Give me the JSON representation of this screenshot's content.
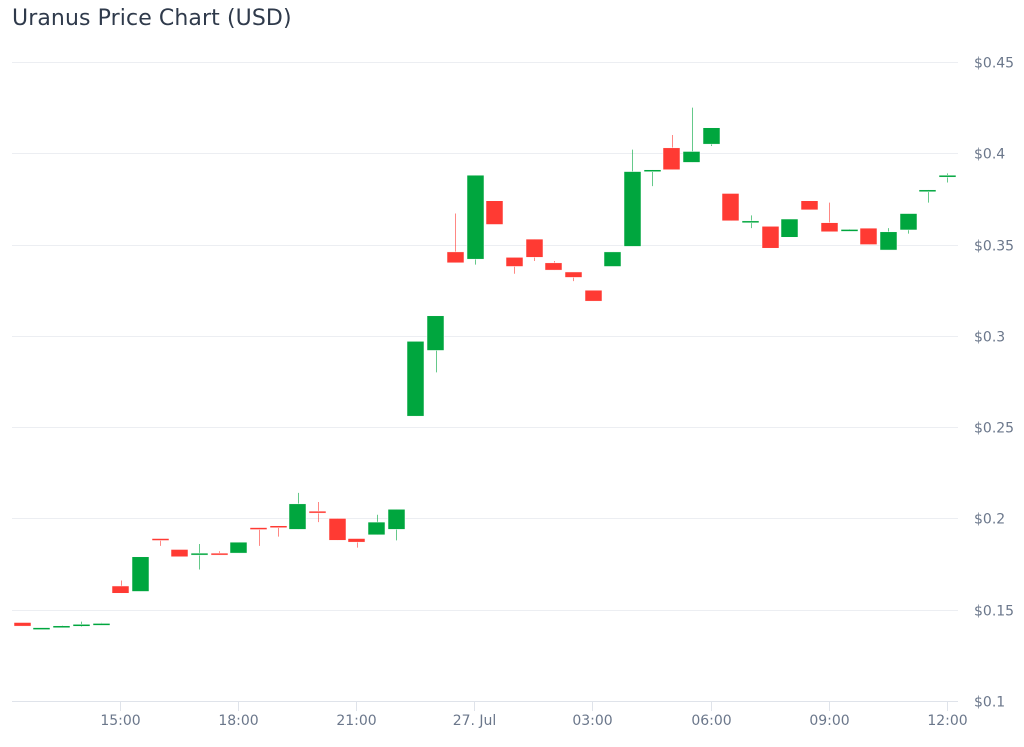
{
  "title": "Uranus Price Chart (USD)",
  "colors": {
    "up": "#00a63e",
    "down": "#ff3a33",
    "grid": "#eceef2",
    "axis_text": "#6b778b",
    "title": "#2f3a4b"
  },
  "chart_data": {
    "type": "candlestick",
    "title": "Uranus Price Chart (USD)",
    "xlabel": "",
    "ylabel": "",
    "ylim": [
      0.1,
      0.45
    ],
    "y_ticks": [
      "$0.1",
      "$0.15",
      "$0.2",
      "$0.25",
      "$0.3",
      "$0.35",
      "$0.4",
      "$0.45"
    ],
    "y_tick_values": [
      0.1,
      0.15,
      0.2,
      0.25,
      0.3,
      0.35,
      0.4,
      0.45
    ],
    "x_ticks": [
      "15:00",
      "18:00",
      "21:00",
      "27. Jul",
      "03:00",
      "06:00",
      "09:00",
      "12:00"
    ],
    "grid": true,
    "legend": "none",
    "interval": "30m",
    "candles": [
      {
        "t": "26 Jul 12:30",
        "o": 0.143,
        "h": 0.143,
        "l": 0.141,
        "c": 0.141
      },
      {
        "t": "26 Jul 13:00",
        "o": 0.14,
        "h": 0.14,
        "l": 0.1395,
        "c": 0.1402
      },
      {
        "t": "26 Jul 13:30",
        "o": 0.141,
        "h": 0.1415,
        "l": 0.1405,
        "c": 0.1412
      },
      {
        "t": "26 Jul 14:00",
        "o": 0.141,
        "h": 0.1435,
        "l": 0.1405,
        "c": 0.142
      },
      {
        "t": "26 Jul 14:30",
        "o": 0.1418,
        "h": 0.1428,
        "l": 0.1418,
        "c": 0.1425
      },
      {
        "t": "26 Jul 15:00",
        "o": 0.163,
        "h": 0.166,
        "l": 0.159,
        "c": 0.159
      },
      {
        "t": "26 Jul 15:30",
        "o": 0.16,
        "h": 0.179,
        "l": 0.16,
        "c": 0.179
      },
      {
        "t": "26 Jul 16:00",
        "o": 0.189,
        "h": 0.189,
        "l": 0.185,
        "c": 0.188
      },
      {
        "t": "26 Jul 16:30",
        "o": 0.183,
        "h": 0.183,
        "l": 0.179,
        "c": 0.179
      },
      {
        "t": "26 Jul 17:00",
        "o": 0.18,
        "h": 0.186,
        "l": 0.172,
        "c": 0.181
      },
      {
        "t": "26 Jul 17:30",
        "o": 0.181,
        "h": 0.182,
        "l": 0.18,
        "c": 0.18
      },
      {
        "t": "26 Jul 18:00",
        "o": 0.181,
        "h": 0.187,
        "l": 0.181,
        "c": 0.187
      },
      {
        "t": "26 Jul 18:30",
        "o": 0.195,
        "h": 0.195,
        "l": 0.185,
        "c": 0.194
      },
      {
        "t": "26 Jul 19:00",
        "o": 0.196,
        "h": 0.196,
        "l": 0.19,
        "c": 0.195
      },
      {
        "t": "26 Jul 19:30",
        "o": 0.194,
        "h": 0.214,
        "l": 0.194,
        "c": 0.208
      },
      {
        "t": "26 Jul 20:00",
        "o": 0.204,
        "h": 0.209,
        "l": 0.198,
        "c": 0.203
      },
      {
        "t": "26 Jul 20:30",
        "o": 0.2,
        "h": 0.2,
        "l": 0.188,
        "c": 0.188
      },
      {
        "t": "26 Jul 21:00",
        "o": 0.189,
        "h": 0.189,
        "l": 0.184,
        "c": 0.187
      },
      {
        "t": "26 Jul 21:30",
        "o": 0.191,
        "h": 0.202,
        "l": 0.191,
        "c": 0.198
      },
      {
        "t": "26 Jul 22:00",
        "o": 0.194,
        "h": 0.205,
        "l": 0.188,
        "c": 0.205
      },
      {
        "t": "26 Jul 22:30",
        "o": 0.256,
        "h": 0.297,
        "l": 0.256,
        "c": 0.297
      },
      {
        "t": "26 Jul 23:00",
        "o": 0.292,
        "h": 0.311,
        "l": 0.28,
        "c": 0.311
      },
      {
        "t": "26 Jul 23:30",
        "o": 0.346,
        "h": 0.367,
        "l": 0.34,
        "c": 0.34
      },
      {
        "t": "27 Jul 00:00",
        "o": 0.342,
        "h": 0.388,
        "l": 0.339,
        "c": 0.388
      },
      {
        "t": "27 Jul 00:30",
        "o": 0.374,
        "h": 0.374,
        "l": 0.361,
        "c": 0.361
      },
      {
        "t": "27 Jul 01:00",
        "o": 0.343,
        "h": 0.343,
        "l": 0.334,
        "c": 0.338
      },
      {
        "t": "27 Jul 01:30",
        "o": 0.353,
        "h": 0.353,
        "l": 0.341,
        "c": 0.343
      },
      {
        "t": "27 Jul 02:00",
        "o": 0.34,
        "h": 0.341,
        "l": 0.336,
        "c": 0.336
      },
      {
        "t": "27 Jul 02:30",
        "o": 0.335,
        "h": 0.335,
        "l": 0.33,
        "c": 0.332
      },
      {
        "t": "27 Jul 03:00",
        "o": 0.325,
        "h": 0.325,
        "l": 0.319,
        "c": 0.319
      },
      {
        "t": "27 Jul 03:30",
        "o": 0.338,
        "h": 0.346,
        "l": 0.338,
        "c": 0.346
      },
      {
        "t": "27 Jul 04:00",
        "o": 0.349,
        "h": 0.402,
        "l": 0.349,
        "c": 0.39
      },
      {
        "t": "27 Jul 04:30",
        "o": 0.39,
        "h": 0.391,
        "l": 0.382,
        "c": 0.391
      },
      {
        "t": "27 Jul 05:00",
        "o": 0.403,
        "h": 0.41,
        "l": 0.391,
        "c": 0.391
      },
      {
        "t": "27 Jul 05:30",
        "o": 0.395,
        "h": 0.425,
        "l": 0.395,
        "c": 0.401
      },
      {
        "t": "27 Jul 06:00",
        "o": 0.405,
        "h": 0.414,
        "l": 0.404,
        "c": 0.414
      },
      {
        "t": "27 Jul 06:30",
        "o": 0.378,
        "h": 0.378,
        "l": 0.363,
        "c": 0.363
      },
      {
        "t": "27 Jul 07:00",
        "o": 0.362,
        "h": 0.366,
        "l": 0.359,
        "c": 0.363
      },
      {
        "t": "27 Jul 07:30",
        "o": 0.36,
        "h": 0.36,
        "l": 0.348,
        "c": 0.348
      },
      {
        "t": "27 Jul 08:00",
        "o": 0.354,
        "h": 0.364,
        "l": 0.354,
        "c": 0.364
      },
      {
        "t": "27 Jul 08:30",
        "o": 0.374,
        "h": 0.374,
        "l": 0.369,
        "c": 0.369
      },
      {
        "t": "27 Jul 09:00",
        "o": 0.362,
        "h": 0.373,
        "l": 0.357,
        "c": 0.357
      },
      {
        "t": "27 Jul 09:30",
        "o": 0.358,
        "h": 0.3585,
        "l": 0.3575,
        "c": 0.3583
      },
      {
        "t": "27 Jul 10:00",
        "o": 0.359,
        "h": 0.359,
        "l": 0.35,
        "c": 0.35
      },
      {
        "t": "27 Jul 10:30",
        "o": 0.347,
        "h": 0.359,
        "l": 0.347,
        "c": 0.357
      },
      {
        "t": "27 Jul 11:00",
        "o": 0.358,
        "h": 0.367,
        "l": 0.356,
        "c": 0.367
      },
      {
        "t": "27 Jul 11:30",
        "o": 0.379,
        "h": 0.38,
        "l": 0.373,
        "c": 0.38
      },
      {
        "t": "27 Jul 12:00",
        "o": 0.387,
        "h": 0.389,
        "l": 0.384,
        "c": 0.388
      }
    ]
  }
}
